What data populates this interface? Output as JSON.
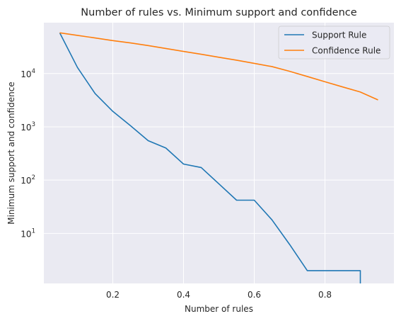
{
  "chart_data": {
    "type": "line",
    "title": "Number of rules vs. Minimum support and confidence",
    "xlabel": "Number of rules",
    "ylabel": "Minimum support and confidence",
    "xscale": "linear",
    "yscale": "log",
    "xlim": [
      0.005,
      0.995
    ],
    "ylim": [
      1.15,
      90000
    ],
    "xticks": [
      0.2,
      0.4,
      0.6,
      0.8
    ],
    "xtick_labels": [
      "0.2",
      "0.4",
      "0.6",
      "0.8"
    ],
    "yticks": [
      10,
      100,
      1000,
      10000
    ],
    "ytick_labels": [
      {
        "base": "10",
        "exp": "1"
      },
      {
        "base": "10",
        "exp": "2"
      },
      {
        "base": "10",
        "exp": "3"
      },
      {
        "base": "10",
        "exp": "4"
      }
    ],
    "grid": true,
    "background": "#eaeaf2",
    "legend_position": "upper right",
    "series": [
      {
        "name": "Support Rule",
        "color": "#1f77b4",
        "x": [
          0.05,
          0.1,
          0.15,
          0.2,
          0.25,
          0.3,
          0.35,
          0.4,
          0.45,
          0.5,
          0.55,
          0.6,
          0.65,
          0.7,
          0.75,
          0.8,
          0.85,
          0.9,
          0.9
        ],
        "y": [
          58000,
          13000,
          4200,
          1950,
          1050,
          550,
          400,
          200,
          172,
          85,
          42,
          42,
          18,
          6.2,
          2,
          2,
          2,
          2,
          1
        ]
      },
      {
        "name": "Confidence Rule",
        "color": "#ff7f0e",
        "x": [
          0.05,
          0.1,
          0.15,
          0.2,
          0.25,
          0.3,
          0.35,
          0.4,
          0.45,
          0.5,
          0.55,
          0.6,
          0.65,
          0.7,
          0.75,
          0.8,
          0.85,
          0.9,
          0.95
        ],
        "y": [
          58000,
          52000,
          46500,
          41500,
          37500,
          33500,
          29500,
          26000,
          23000,
          20200,
          17800,
          15500,
          13500,
          11000,
          8800,
          7000,
          5600,
          4500,
          3200
        ]
      }
    ]
  }
}
